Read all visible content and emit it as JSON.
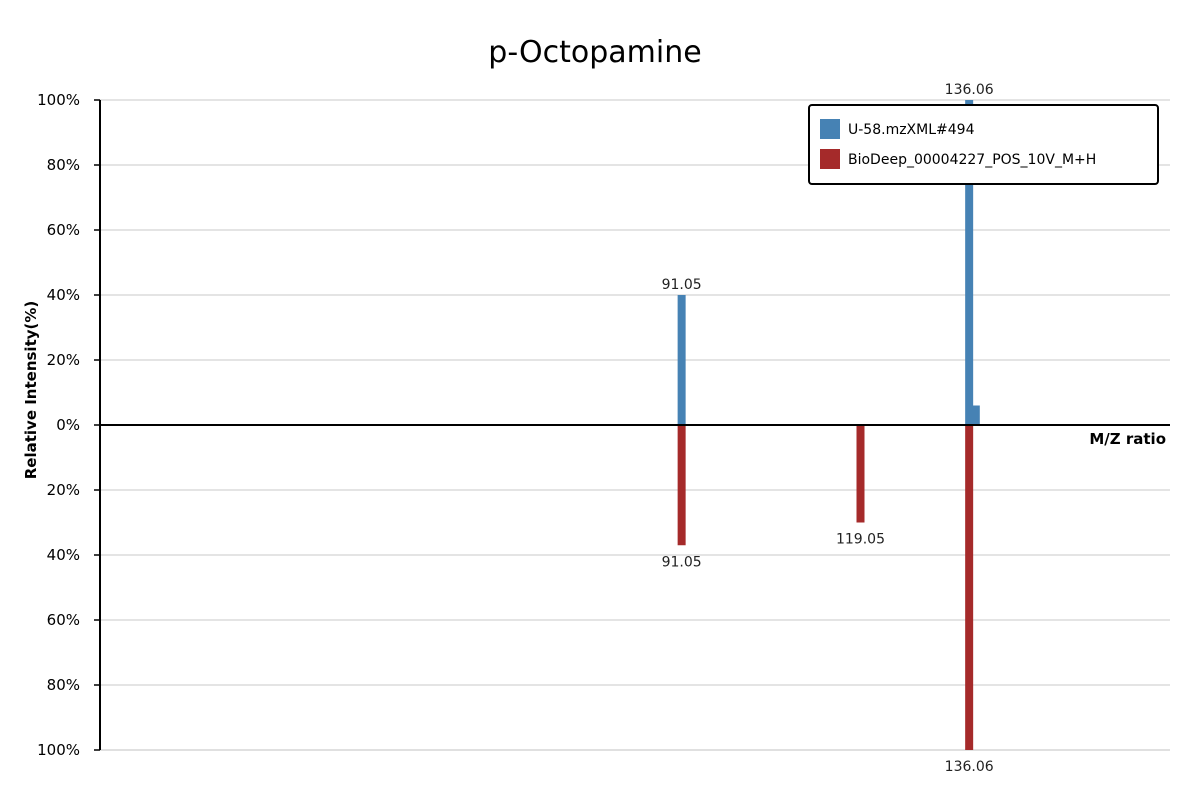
{
  "chart_data": {
    "type": "bar",
    "title": "p-Octopamine",
    "xlabel": "M/Z ratio",
    "ylabel": "Relative Intensity(%)",
    "xlim": [
      0,
      167.5
    ],
    "ylim": [
      -100,
      100
    ],
    "y_ticks": [
      {
        "value": 100,
        "label": "100%"
      },
      {
        "value": 80,
        "label": "80%"
      },
      {
        "value": 60,
        "label": "60%"
      },
      {
        "value": 40,
        "label": "40%"
      },
      {
        "value": 20,
        "label": "20%"
      },
      {
        "value": 0,
        "label": "0%"
      },
      {
        "value": -20,
        "label": "20%"
      },
      {
        "value": -40,
        "label": "40%"
      },
      {
        "value": -60,
        "label": "60%"
      },
      {
        "value": -80,
        "label": "80%"
      },
      {
        "value": -100,
        "label": "100%"
      }
    ],
    "grid": true,
    "legend_position": "top-right",
    "series": [
      {
        "name": "U-58.mzXML#494",
        "color": "#4682b4",
        "direction": "up",
        "peaks": [
          {
            "mz": 91.05,
            "intensity": 40,
            "label": "91.05"
          },
          {
            "mz": 136.06,
            "intensity": 100,
            "label": "136.06"
          },
          {
            "mz": 137.1,
            "intensity": 6,
            "label": ""
          }
        ]
      },
      {
        "name": "BioDeep_00004227_POS_10V_M+H",
        "color": "#a52a2a",
        "direction": "down",
        "peaks": [
          {
            "mz": 91.05,
            "intensity": 37,
            "label": "91.05"
          },
          {
            "mz": 119.05,
            "intensity": 30,
            "label": "119.05"
          },
          {
            "mz": 136.06,
            "intensity": 100,
            "label": "136.06"
          }
        ]
      }
    ]
  }
}
